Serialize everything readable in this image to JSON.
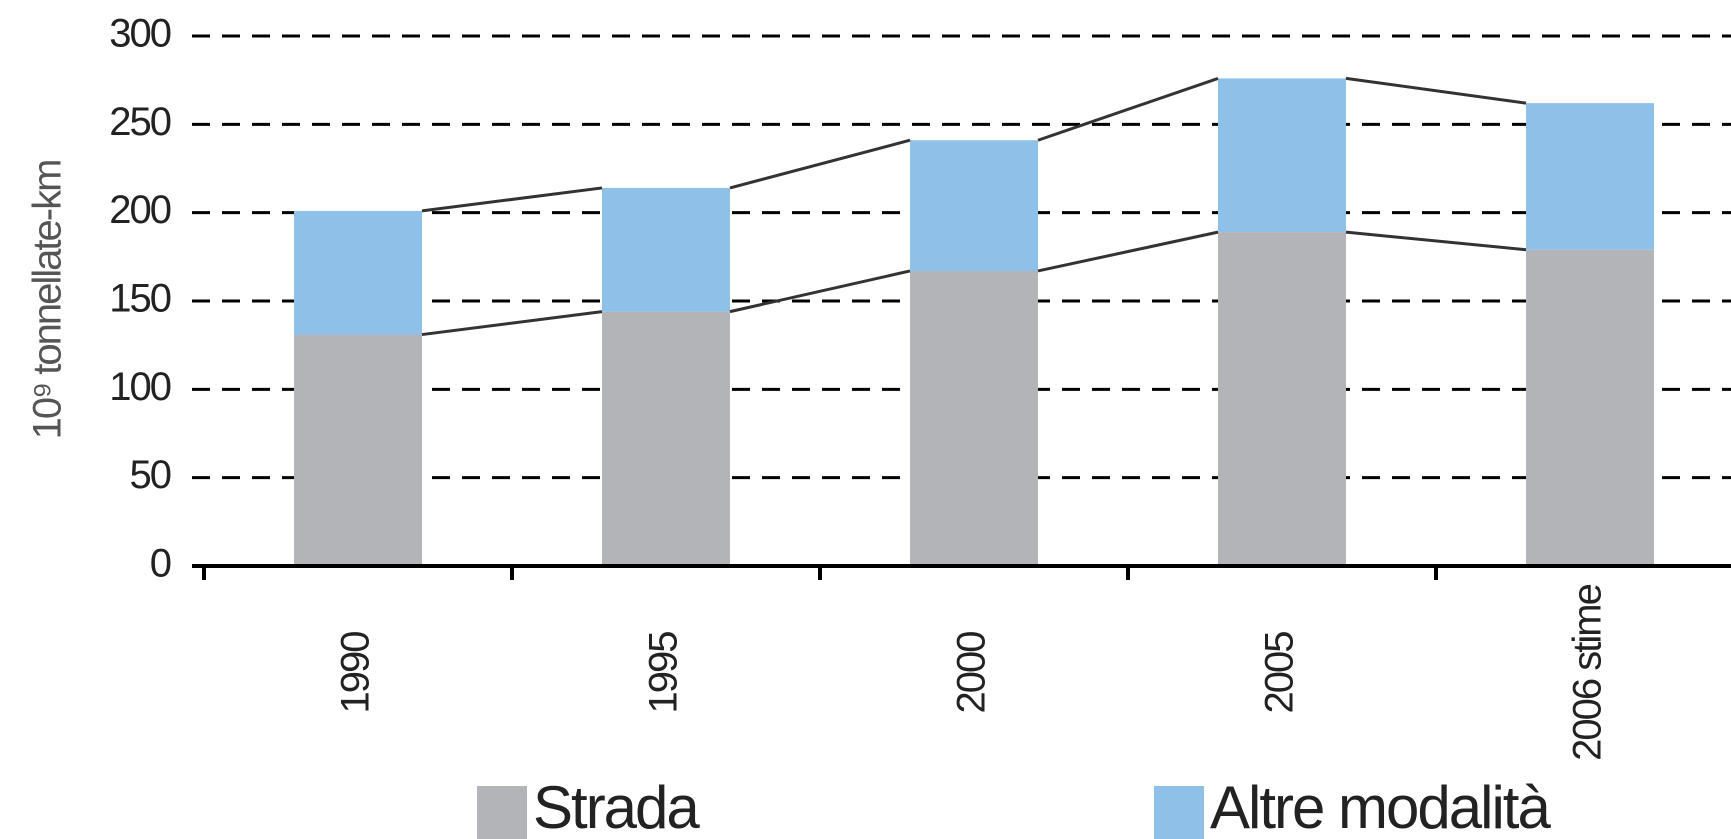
{
  "chart_data": {
    "type": "stacked_bar",
    "y_label": "10⁹ tonnellate-km",
    "categories": [
      "1990",
      "1995",
      "2000",
      "2005",
      "2006 stime"
    ],
    "series": [
      {
        "name": "Strada",
        "color": "#b2b4b7",
        "values": [
          131,
          144,
          167,
          189,
          179
        ]
      },
      {
        "name": "Altre modalità",
        "color": "#8fc0e8",
        "values": [
          70,
          70,
          74,
          87,
          83
        ]
      }
    ],
    "ylim": [
      0,
      300
    ],
    "yticks": [
      0,
      50,
      100,
      150,
      200,
      250,
      300
    ],
    "grid": true
  }
}
